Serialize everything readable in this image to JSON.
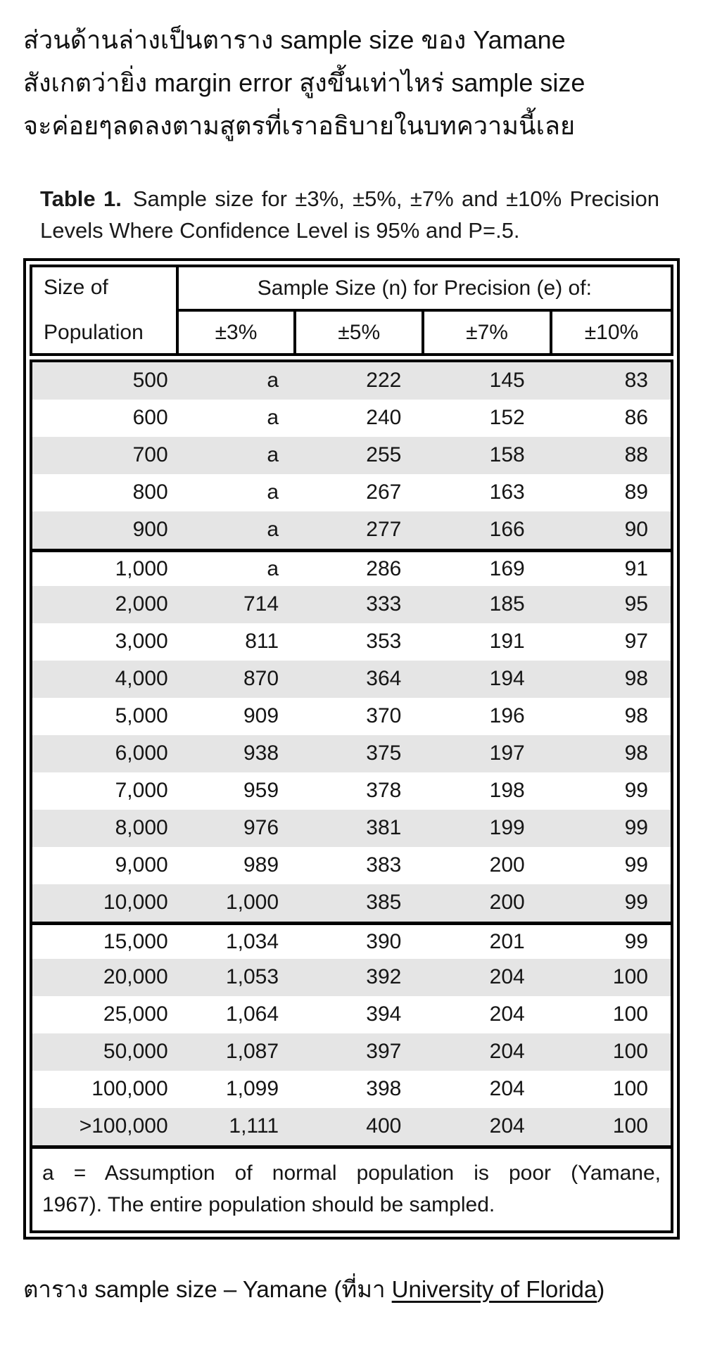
{
  "intro": {
    "lines": [
      "ส่วนด้านล่างเป็นตาราง sample size ของ Yamane",
      "สังเกตว่ายิ่ง margin error สูงขึ้นเท่าไหร่ sample size",
      "จะค่อยๆลดลงตามสูตรที่เราอธิบายในบทความนี้เลย"
    ]
  },
  "table": {
    "title_bold": "Table 1.",
    "title_rest": "Sample size for ±3%, ±5%, ±7% and ±10% Precision Levels Where Confidence Level is 95% and P=.5.",
    "header": {
      "col1_line1": "Size of",
      "col1_line2": "Population",
      "span_header": "Sample Size (n) for Precision (e) of:",
      "precision_cols": [
        "±3%",
        "±5%",
        "±7%",
        "±10%"
      ]
    },
    "groups": [
      [
        [
          "500",
          "a",
          "222",
          "145",
          "83"
        ],
        [
          "600",
          "a",
          "240",
          "152",
          "86"
        ],
        [
          "700",
          "a",
          "255",
          "158",
          "88"
        ],
        [
          "800",
          "a",
          "267",
          "163",
          "89"
        ],
        [
          "900",
          "a",
          "277",
          "166",
          "90"
        ]
      ],
      [
        [
          "1,000",
          "a",
          "286",
          "169",
          "91"
        ],
        [
          "2,000",
          "714",
          "333",
          "185",
          "95"
        ],
        [
          "3,000",
          "811",
          "353",
          "191",
          "97"
        ],
        [
          "4,000",
          "870",
          "364",
          "194",
          "98"
        ],
        [
          "5,000",
          "909",
          "370",
          "196",
          "98"
        ],
        [
          "6,000",
          "938",
          "375",
          "197",
          "98"
        ],
        [
          "7,000",
          "959",
          "378",
          "198",
          "99"
        ],
        [
          "8,000",
          "976",
          "381",
          "199",
          "99"
        ],
        [
          "9,000",
          "989",
          "383",
          "200",
          "99"
        ],
        [
          "10,000",
          "1,000",
          "385",
          "200",
          "99"
        ]
      ],
      [
        [
          "15,000",
          "1,034",
          "390",
          "201",
          "99"
        ],
        [
          "20,000",
          "1,053",
          "392",
          "204",
          "100"
        ],
        [
          "25,000",
          "1,064",
          "394",
          "204",
          "100"
        ],
        [
          "50,000",
          "1,087",
          "397",
          "204",
          "100"
        ],
        [
          "100,000",
          "1,099",
          "398",
          "204",
          "100"
        ],
        [
          ">100,000",
          "1,111",
          "400",
          "204",
          "100"
        ]
      ]
    ],
    "footnote_line1": "a = Assumption of normal population is poor (Yamane,",
    "footnote_line2": "1967).  The entire population should be sampled."
  },
  "caption": {
    "prefix": "ตาราง sample size – Yamane (ที่มา ",
    "link": "University of Florida",
    "suffix": ")"
  },
  "colors": {
    "stripe": "#e5e5e5",
    "border": "#000000",
    "text": "#151515"
  },
  "chart_data": {
    "type": "table",
    "title": "Table 1. Sample size for ±3%, ±5%, ±7% and ±10% Precision Levels Where Confidence Level is 95% and P=.5.",
    "columns": [
      "Size of Population",
      "±3%",
      "±5%",
      "±7%",
      "±10%"
    ],
    "rows": [
      [
        "500",
        "a",
        222,
        145,
        83
      ],
      [
        "600",
        "a",
        240,
        152,
        86
      ],
      [
        "700",
        "a",
        255,
        158,
        88
      ],
      [
        "800",
        "a",
        267,
        163,
        89
      ],
      [
        "900",
        "a",
        277,
        166,
        90
      ],
      [
        "1,000",
        "a",
        286,
        169,
        91
      ],
      [
        "2,000",
        714,
        333,
        185,
        95
      ],
      [
        "3,000",
        811,
        353,
        191,
        97
      ],
      [
        "4,000",
        870,
        364,
        194,
        98
      ],
      [
        "5,000",
        909,
        370,
        196,
        98
      ],
      [
        "6,000",
        938,
        375,
        197,
        98
      ],
      [
        "7,000",
        959,
        378,
        198,
        99
      ],
      [
        "8,000",
        976,
        381,
        199,
        99
      ],
      [
        "9,000",
        989,
        383,
        200,
        99
      ],
      [
        "10,000",
        "1,000",
        385,
        200,
        99
      ],
      [
        "15,000",
        "1,034",
        390,
        201,
        99
      ],
      [
        "20,000",
        "1,053",
        392,
        204,
        100
      ],
      [
        "25,000",
        "1,064",
        394,
        204,
        100
      ],
      [
        "50,000",
        "1,087",
        397,
        204,
        100
      ],
      [
        "100,000",
        "1,099",
        398,
        204,
        100
      ],
      [
        ">100,000",
        "1,111",
        400,
        204,
        100
      ]
    ],
    "footnote": "a = Assumption of normal population is poor (Yamane, 1967). The entire population should be sampled."
  }
}
